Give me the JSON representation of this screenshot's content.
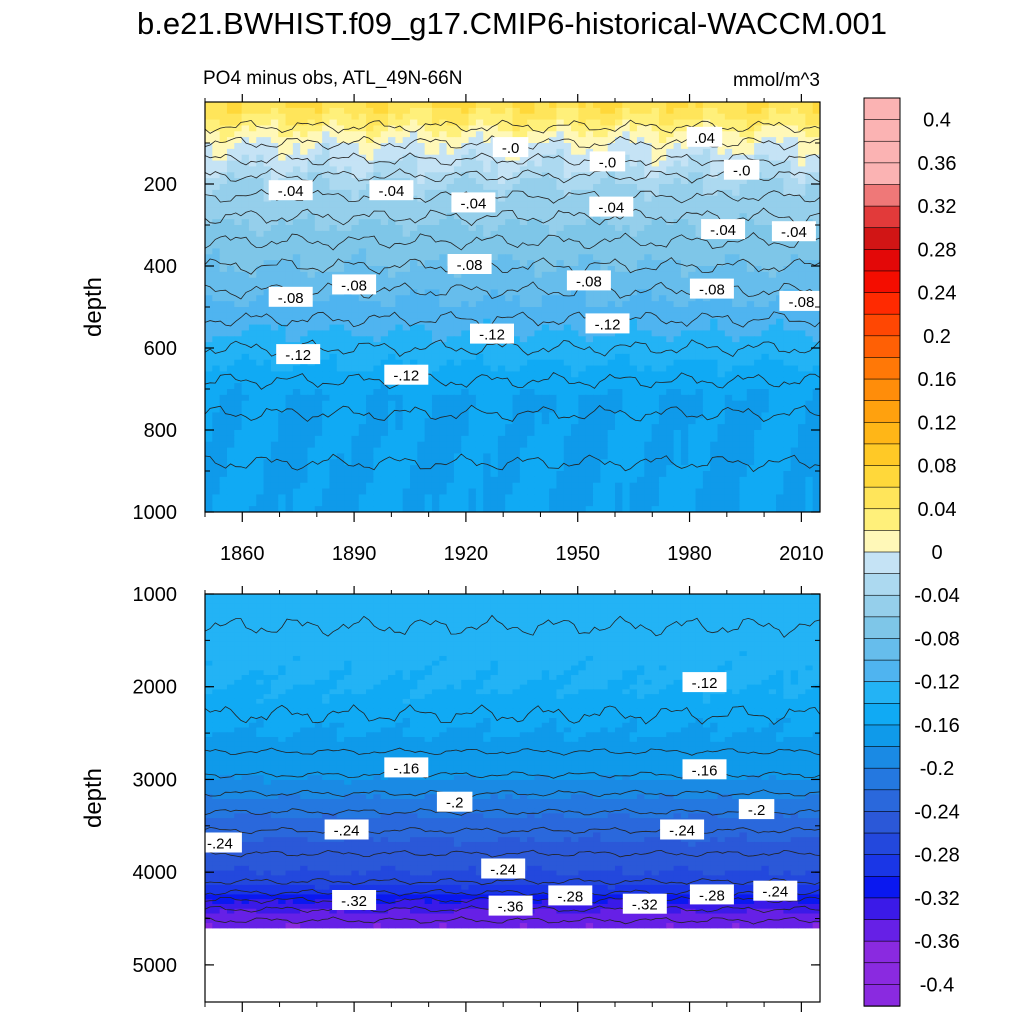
{
  "title": "b.e21.BWHIST.f09_g17.CMIP6-historical-WACCM.001",
  "panel_title": "PO4 minus obs, ATL_49N-66N",
  "units": "mmol/m^3",
  "colors": {
    "positive_scale": [
      "#fff8b8",
      "#fff07a",
      "#ffe55a",
      "#ffd83a",
      "#ffc926",
      "#ffb617",
      "#ffa10e",
      "#ff8d0a",
      "#ff7807",
      "#ff6005",
      "#ff4703",
      "#ff2a01",
      "#f40d00",
      "#e30808",
      "#d11515",
      "#e23a3a",
      "#ef7878",
      "#fbb3b3"
    ],
    "negative_scale": [
      "#c5e3f5",
      "#acd9f0",
      "#95cfeb",
      "#7ec6e8",
      "#66bdec",
      "#4fb4f0",
      "#23b3f5",
      "#10aaf4",
      "#0f9aea",
      "#1a8ae4",
      "#2478e0",
      "#2a68dc",
      "#2b58d8",
      "#2348dd",
      "#1a36e6",
      "#0a18f0",
      "#3b1ae8",
      "#6620e6",
      "#8a2ae0"
    ],
    "contour_line": "#222222"
  },
  "chart_data": [
    {
      "type": "heatmap",
      "panel": "upper",
      "title": "PO4 minus obs, ATL_49N-66N",
      "units": "mmol/m^3",
      "ylabel": "depth",
      "xlabel": "",
      "xlim": [
        1850,
        2015
      ],
      "ylim": [
        1000,
        0
      ],
      "xticks": [
        1860,
        1890,
        1920,
        1950,
        1980,
        2010
      ],
      "yticks": [
        200,
        400,
        600,
        800,
        1000
      ],
      "contour_interval": 0.02,
      "contour_labels": [
        {
          "text": "-.0",
          "x": 1932,
          "y": 110
        },
        {
          "text": "-.0",
          "x": 1958,
          "y": 145
        },
        {
          "text": ".04",
          "x": 1984,
          "y": 85
        },
        {
          "text": "-.0",
          "x": 1994,
          "y": 165
        },
        {
          "text": "-.04",
          "x": 1873,
          "y": 215
        },
        {
          "text": "-.04",
          "x": 1900,
          "y": 215
        },
        {
          "text": "-.04",
          "x": 1922,
          "y": 245
        },
        {
          "text": "-.04",
          "x": 1959,
          "y": 255
        },
        {
          "text": "-.04",
          "x": 1989,
          "y": 310
        },
        {
          "text": "-.04",
          "x": 2008,
          "y": 315
        },
        {
          "text": "-.08",
          "x": 1873,
          "y": 475
        },
        {
          "text": "-.08",
          "x": 1890,
          "y": 445
        },
        {
          "text": "-.08",
          "x": 1921,
          "y": 395
        },
        {
          "text": "-.08",
          "x": 1953,
          "y": 435
        },
        {
          "text": "-.08",
          "x": 1986,
          "y": 455
        },
        {
          "text": "-.08",
          "x": 2010,
          "y": 485
        },
        {
          "text": "-.12",
          "x": 1875,
          "y": 615
        },
        {
          "text": "-.12",
          "x": 1904,
          "y": 665
        },
        {
          "text": "-.12",
          "x": 1927,
          "y": 565
        },
        {
          "text": "-.12",
          "x": 1958,
          "y": 540
        }
      ],
      "depth_levels": [
        0,
        40,
        100,
        160,
        200,
        260,
        320,
        400,
        480,
        560,
        640,
        720,
        800,
        900,
        1000
      ],
      "values": [
        0.06,
        0.04,
        0.0,
        -0.02,
        -0.04,
        -0.05,
        -0.065,
        -0.08,
        -0.1,
        -0.12,
        -0.14,
        -0.16,
        -0.16,
        -0.16,
        -0.16
      ]
    },
    {
      "type": "heatmap",
      "panel": "lower",
      "ylabel": "depth",
      "xlabel": "",
      "xlim": [
        1850,
        2015
      ],
      "ylim": [
        5400,
        1000
      ],
      "yticks": [
        1000,
        2000,
        3000,
        4000,
        5000
      ],
      "contour_interval": 0.02,
      "bottom_of_data_depth": 4600,
      "contour_labels": [
        {
          "text": "-.12",
          "x": 1984,
          "y": 1950
        },
        {
          "text": "-.16",
          "x": 1904,
          "y": 2870
        },
        {
          "text": "-.16",
          "x": 1984,
          "y": 2890
        },
        {
          "text": "-.2",
          "x": 1917,
          "y": 3240
        },
        {
          "text": "-.2",
          "x": 1998,
          "y": 3320
        },
        {
          "text": "-.24",
          "x": 1854,
          "y": 3680
        },
        {
          "text": "-.24",
          "x": 1888,
          "y": 3540
        },
        {
          "text": "-.24",
          "x": 1978,
          "y": 3540
        },
        {
          "text": "-.24",
          "x": 1930,
          "y": 3960
        },
        {
          "text": "-.32",
          "x": 1890,
          "y": 4300
        },
        {
          "text": "-.36",
          "x": 1932,
          "y": 4360
        },
        {
          "text": "-.28",
          "x": 1948,
          "y": 4250
        },
        {
          "text": "-.32",
          "x": 1968,
          "y": 4340
        },
        {
          "text": "-.28",
          "x": 1986,
          "y": 4240
        },
        {
          "text": "-.24",
          "x": 2003,
          "y": 4200
        }
      ],
      "depth_levels": [
        1000,
        1500,
        2000,
        2500,
        2800,
        3000,
        3200,
        3500,
        3800,
        4000,
        4150,
        4250,
        4350,
        4500,
        4600
      ],
      "values": [
        -0.13,
        -0.13,
        -0.14,
        -0.16,
        -0.17,
        -0.18,
        -0.2,
        -0.23,
        -0.25,
        -0.26,
        -0.28,
        -0.3,
        -0.33,
        -0.35,
        -0.36
      ]
    }
  ],
  "colorbar": {
    "labels": [
      "0.4",
      "0.36",
      "0.32",
      "0.28",
      "0.24",
      "0.2",
      "0.16",
      "0.12",
      "0.08",
      "0.04",
      "0",
      "-0.04",
      "-0.08",
      "-0.12",
      "-0.16",
      "-0.2",
      "-0.24",
      "-0.28",
      "-0.32",
      "-0.36",
      "-0.4"
    ],
    "levels": [
      0.4,
      0.36,
      0.32,
      0.28,
      0.24,
      0.2,
      0.16,
      0.12,
      0.08,
      0.04,
      0,
      -0.04,
      -0.08,
      -0.12,
      -0.16,
      -0.2,
      -0.24,
      -0.28,
      -0.32,
      -0.36,
      -0.4
    ]
  }
}
